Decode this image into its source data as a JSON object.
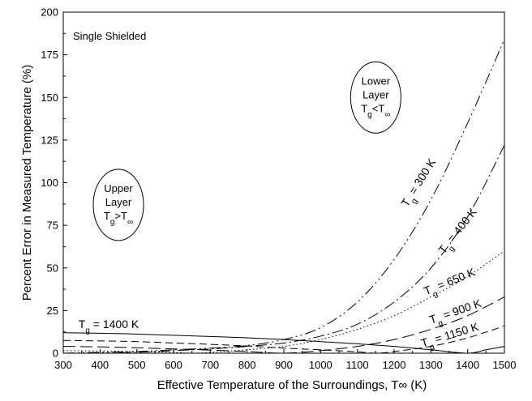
{
  "chart_data": {
    "type": "line",
    "title": "",
    "xlabel": "Effective Temperature of the Surroundings, T∞ (K)",
    "ylabel": "Percent Error in Measured Temperature (%)",
    "xlim": [
      300,
      1500
    ],
    "ylim": [
      0,
      200
    ],
    "x_ticks": [
      "300",
      "400",
      "500",
      "600",
      "700",
      "800",
      "900",
      "1000",
      "1100",
      "1200",
      "1300",
      "1400",
      "1500"
    ],
    "y_ticks": [
      "0",
      "25",
      "50",
      "75",
      "100",
      "125",
      "150",
      "175",
      "200"
    ],
    "grid": false,
    "annotation": "Single Shielded",
    "bubbles": [
      {
        "lines": [
          "Upper",
          "Layer"
        ],
        "eq_base": "T",
        "eq_sub": "g",
        "eq_rest": ">T",
        "eq_sup": "∞"
      },
      {
        "lines": [
          "Lower",
          "Layer"
        ],
        "eq_base": "T",
        "eq_sub": "g",
        "eq_rest": "<T",
        "eq_sup": "∞"
      }
    ],
    "series": [
      {
        "name_base": "T",
        "name_sub": "g",
        "name_rest": " = 300 K",
        "dash": "dashdotdot",
        "x": [
          300,
          400,
          500,
          600,
          700,
          800,
          900,
          1000,
          1100,
          1200,
          1300,
          1400,
          1500
        ],
        "y": [
          0,
          0.5,
          1,
          2,
          3,
          4.5,
          8,
          15,
          30,
          55,
          90,
          135,
          184
        ]
      },
      {
        "name_base": "T",
        "name_sub": "g",
        "name_rest": " = 400 K",
        "dash": "dashdot",
        "x": [
          400,
          500,
          600,
          700,
          800,
          900,
          1000,
          1100,
          1200,
          1300,
          1400,
          1500
        ],
        "y": [
          0,
          0.5,
          1.5,
          2.5,
          4,
          6,
          10,
          17,
          30,
          50,
          80,
          122
        ]
      },
      {
        "name_base": "T",
        "name_sub": "g",
        "name_rest": " = 650 K",
        "dash": "dotted",
        "x": [
          300,
          400,
          500,
          600,
          650,
          700,
          800,
          900,
          1000,
          1100,
          1200,
          1300,
          1400,
          1500
        ],
        "y": [
          1.5,
          1.3,
          1,
          0.5,
          0,
          0.5,
          2,
          4,
          8,
          14,
          22,
          33,
          45,
          60
        ]
      },
      {
        "name_base": "T",
        "name_sub": "g",
        "name_rest": " = 900 K",
        "dash": "longdash",
        "x": [
          300,
          400,
          500,
          600,
          700,
          800,
          900,
          1000,
          1100,
          1200,
          1300,
          1400,
          1500
        ],
        "y": [
          4,
          3.7,
          3.2,
          2.5,
          1.8,
          1,
          0,
          1.5,
          4,
          8,
          14,
          22,
          33
        ]
      },
      {
        "name_base": "T",
        "name_sub": "g",
        "name_rest": " = 1150 K",
        "dash": "dash",
        "x": [
          300,
          400,
          500,
          600,
          700,
          800,
          900,
          1000,
          1100,
          1150,
          1200,
          1300,
          1400,
          1500
        ],
        "y": [
          7.5,
          7.2,
          6.8,
          6,
          5.2,
          4.2,
          3,
          2,
          0.8,
          0,
          1,
          4,
          9,
          16
        ]
      },
      {
        "name_base": "T",
        "name_sub": "g",
        "name_rest": " = 1400 K",
        "dash": "solid",
        "x": [
          300,
          400,
          500,
          600,
          700,
          800,
          900,
          1000,
          1100,
          1200,
          1300,
          1400,
          1450,
          1500
        ],
        "y": [
          12,
          11.7,
          11.2,
          10.5,
          9.8,
          9,
          8,
          6.8,
          5.5,
          4,
          2,
          0,
          2,
          4
        ]
      }
    ]
  }
}
